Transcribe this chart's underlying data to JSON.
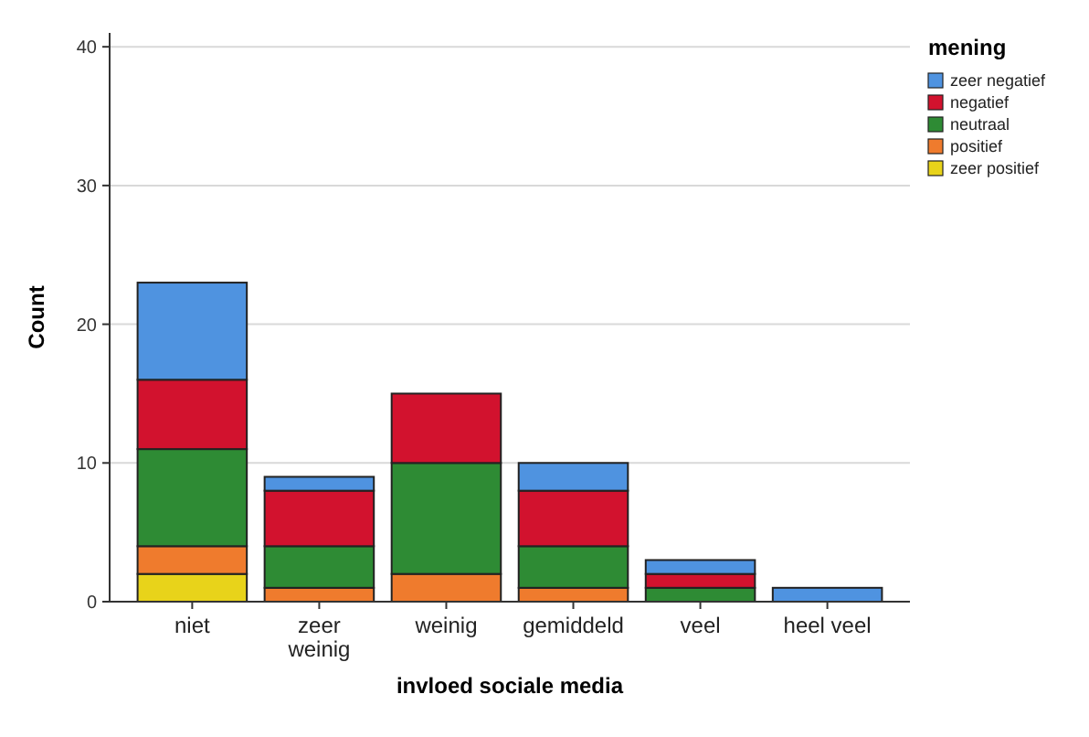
{
  "chart_data": {
    "type": "bar",
    "stacked": true,
    "xlabel": "invloed sociale media",
    "ylabel": "Count",
    "legend_title": "mening",
    "legend": "top right",
    "grid": "y",
    "categories": [
      "niet",
      "zeer weinig",
      "weinig",
      "gemiddeld",
      "veel",
      "heel veel"
    ],
    "ylim": [
      0,
      41
    ],
    "yticks": [
      0,
      10,
      20,
      30,
      40
    ],
    "series": [
      {
        "name": "zeer positief",
        "color": "#e8d31a",
        "values": [
          2,
          0,
          0,
          0,
          0,
          0
        ]
      },
      {
        "name": "positief",
        "color": "#ef7b2d",
        "values": [
          2,
          1,
          2,
          1,
          0,
          0
        ]
      },
      {
        "name": "neutraal",
        "color": "#2e8b34",
        "values": [
          7,
          3,
          8,
          3,
          1,
          0
        ]
      },
      {
        "name": "negatief",
        "color": "#d2122e",
        "values": [
          5,
          4,
          5,
          4,
          1,
          0
        ]
      },
      {
        "name": "zeer negatief",
        "color": "#4f93e0",
        "values": [
          7,
          1,
          0,
          2,
          1,
          1
        ]
      }
    ]
  }
}
